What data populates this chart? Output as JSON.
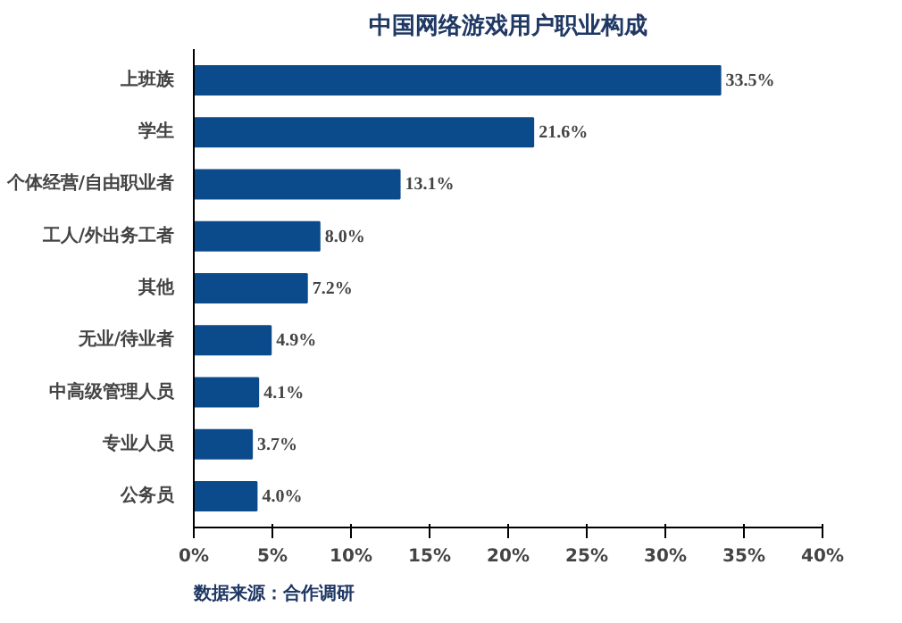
{
  "chart_data": {
    "type": "bar",
    "orientation": "horizontal",
    "title": "中国网络游戏用户职业构成",
    "categories": [
      "上班族",
      "学生",
      "个体经营/自由职业者",
      "工人/外出务工者",
      "其他",
      "无业/待业者",
      "中高级管理人员",
      "专业人员",
      "公务员"
    ],
    "values": [
      33.5,
      21.6,
      13.1,
      8.0,
      7.2,
      4.9,
      4.1,
      3.7,
      4.0
    ],
    "value_labels": [
      "33.5%",
      "21.6%",
      "13.1%",
      "8.0%",
      "7.2%",
      "4.9%",
      "4.1%",
      "3.7%",
      "4.0%"
    ],
    "color": "#0b4a8b",
    "xlim": [
      0,
      40
    ],
    "xticks": [
      {
        "value": 0,
        "label": "0%"
      },
      {
        "value": 5,
        "label": "5%"
      },
      {
        "value": 10,
        "label": "10%"
      },
      {
        "value": 15,
        "label": "15%"
      },
      {
        "value": 20,
        "label": "20%"
      },
      {
        "value": 25,
        "label": "25%"
      },
      {
        "value": 30,
        "label": "30%"
      },
      {
        "value": 35,
        "label": "35%"
      },
      {
        "value": 40,
        "label": "40%"
      }
    ],
    "grid": false,
    "annotations": [
      "数据来源：合作调研"
    ]
  }
}
